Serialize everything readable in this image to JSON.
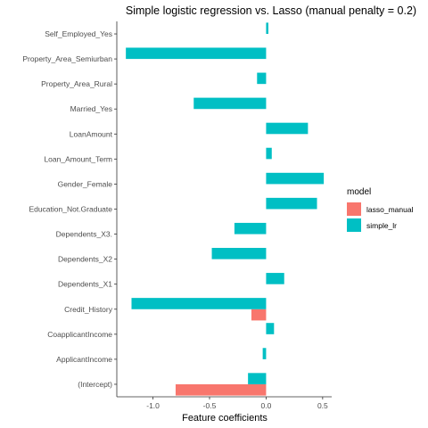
{
  "chart_data": {
    "type": "bar",
    "orientation": "horizontal",
    "title": "Simple logistic regression vs. Lasso (manual penalty = 0.2)",
    "xlabel": "Feature coefficients",
    "ylabel": "",
    "xlim": [
      -1.32,
      0.58
    ],
    "xticks": [
      -1.0,
      -0.5,
      0.0,
      0.5
    ],
    "xtick_labels": [
      "-1.0",
      "-0.5",
      "0.0",
      "0.5"
    ],
    "grid": false,
    "legend": {
      "title": "model",
      "position": "right"
    },
    "categories": [
      "Self_Employed_Yes",
      "Property_Area_Semiurban",
      "Property_Area_Rural",
      "Married_Yes",
      "LoanAmount",
      "Loan_Amount_Term",
      "Gender_Female",
      "Education_Not.Graduate",
      "Dependents_X3.",
      "Dependents_X2",
      "Dependents_X1",
      "Credit_History",
      "CoapplicantIncome",
      "ApplicantIncome",
      "(Intercept)"
    ],
    "series": [
      {
        "name": "lasso_manual",
        "color": "#F8766D",
        "values": [
          0,
          0,
          0,
          0,
          0,
          0,
          0,
          0,
          0,
          0,
          0,
          -0.13,
          0,
          0,
          -0.8
        ]
      },
      {
        "name": "simple_lr",
        "color": "#00BFC4",
        "values": [
          0.02,
          -1.24,
          -0.08,
          -0.64,
          0.37,
          0.05,
          0.51,
          0.45,
          -0.28,
          -0.48,
          0.16,
          -1.19,
          0.07,
          -0.03,
          -0.16
        ]
      }
    ]
  }
}
